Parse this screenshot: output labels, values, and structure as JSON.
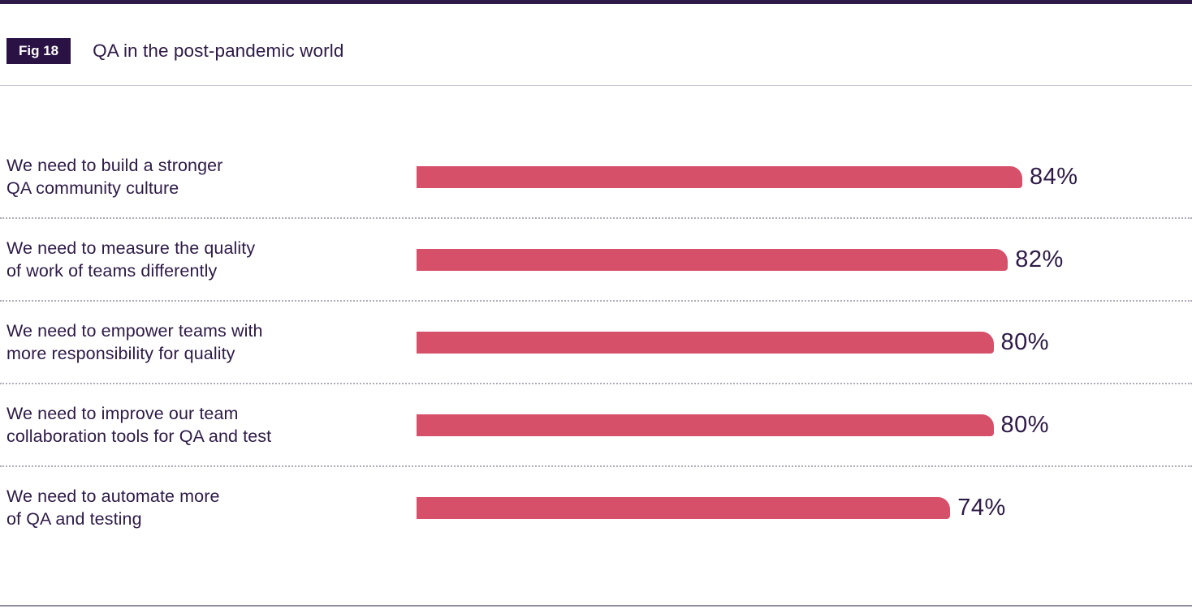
{
  "figure": {
    "tag": "Fig 18",
    "title": "QA in the post-pandemic world"
  },
  "chart_data": {
    "type": "bar",
    "orientation": "horizontal",
    "title": "QA in the post-pandemic world",
    "xlabel": "",
    "ylabel": "",
    "xlim": [
      0,
      100
    ],
    "value_suffix": "%",
    "legend": "none",
    "grid": "dotted-row-separators",
    "bar_color": "#d6506a",
    "text_color": "#2e1a47",
    "categories": [
      "We need to build a stronger QA community culture",
      "We need to measure the quality of work of teams differently",
      "We need to empower teams with more responsibility for quality",
      "We need to improve our team collaboration tools for QA and test",
      "We need to automate more of QA and testing"
    ],
    "values": [
      84,
      82,
      80,
      80,
      74
    ],
    "rows": [
      {
        "line1": "We need to build a stronger",
        "line2": "QA community culture",
        "value": 84,
        "display": "84%"
      },
      {
        "line1": "We need to measure the quality",
        "line2": "of work of teams differently",
        "value": 82,
        "display": "82%"
      },
      {
        "line1": "We need to empower teams with",
        "line2": "more responsibility for quality",
        "value": 80,
        "display": "80%"
      },
      {
        "line1": "We need to improve our team",
        "line2": "collaboration tools for QA and test",
        "value": 80,
        "display": "80%"
      },
      {
        "line1": "We need to automate more",
        "line2": "of QA and testing",
        "value": 74,
        "display": "74%"
      }
    ]
  }
}
